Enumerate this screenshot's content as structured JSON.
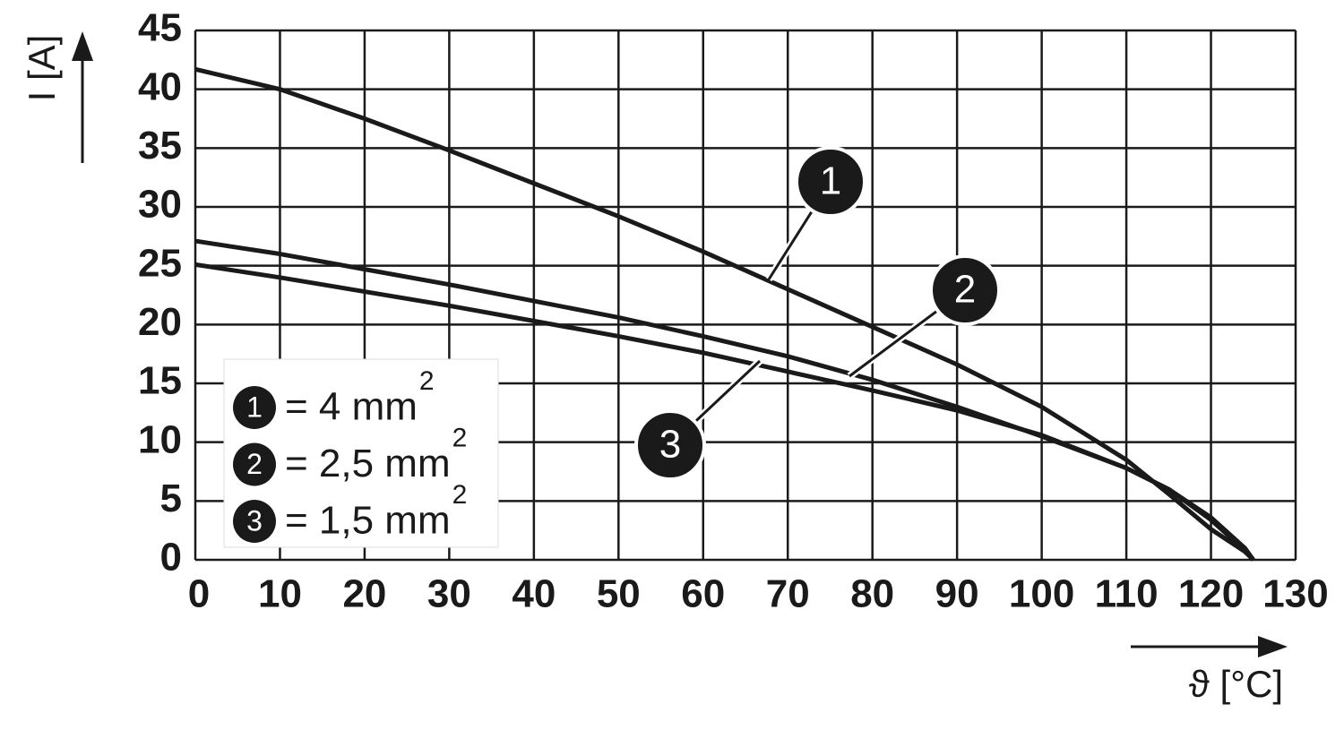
{
  "chart_data": {
    "type": "line",
    "x_label": "ϑ [°C]",
    "y_label": "I [A]",
    "x": [
      0,
      10,
      20,
      30,
      40,
      50,
      60,
      70,
      80,
      90,
      100,
      110,
      115,
      120,
      124,
      125
    ],
    "series": [
      {
        "label": "1",
        "name": "= 4 mm",
        "unit_exponent": "2",
        "color": "#1a1a1a",
        "values": [
          41.7,
          40.0,
          37.5,
          34.8,
          32.0,
          29.2,
          26.2,
          23.0,
          19.8,
          16.6,
          13.0,
          8.5,
          5.6,
          2.6,
          0.7,
          0
        ]
      },
      {
        "label": "2",
        "name": "= 2,5 mm",
        "unit_exponent": "2",
        "color": "#1a1a1a",
        "values": [
          27.1,
          26.0,
          24.7,
          23.4,
          22.0,
          20.6,
          19.0,
          17.3,
          15.3,
          13.0,
          10.5,
          7.8,
          6.0,
          3.6,
          1.0,
          0
        ]
      },
      {
        "label": "3",
        "name": "= 1,5 mm",
        "unit_exponent": "2",
        "color": "#1a1a1a",
        "values": [
          25.1,
          24.0,
          22.8,
          21.6,
          20.3,
          19.0,
          17.6,
          16.0,
          14.4,
          12.7,
          10.6,
          7.8,
          6.0,
          3.4,
          0.8,
          0
        ]
      }
    ],
    "xlim": [
      0,
      130
    ],
    "xticks": [
      0,
      10,
      20,
      30,
      40,
      50,
      60,
      70,
      80,
      90,
      100,
      110,
      120,
      130
    ],
    "ylim": [
      0,
      45
    ],
    "yticks": [
      0,
      5,
      10,
      15,
      20,
      25,
      30,
      35,
      40,
      45
    ],
    "grid": true
  }
}
